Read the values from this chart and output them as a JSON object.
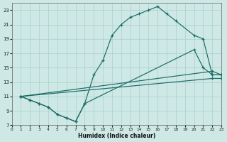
{
  "xlabel": "Humidex (Indice chaleur)",
  "bg_color": "#cde8e5",
  "line_color": "#1b6b65",
  "grid_color": "#aad0cc",
  "xlim": [
    0,
    23
  ],
  "ylim": [
    7,
    24
  ],
  "xticks": [
    0,
    1,
    2,
    3,
    4,
    5,
    6,
    7,
    8,
    9,
    10,
    11,
    12,
    13,
    14,
    15,
    16,
    17,
    18,
    19,
    20,
    21,
    22,
    23
  ],
  "yticks": [
    7,
    9,
    11,
    13,
    15,
    17,
    19,
    21,
    23
  ],
  "series": [
    {
      "x": [
        1,
        2,
        3,
        4,
        5,
        6,
        7,
        8,
        9,
        10,
        11,
        12,
        13,
        14,
        15,
        16,
        17,
        18,
        20,
        21,
        22,
        23
      ],
      "y": [
        11,
        10.5,
        10,
        9.5,
        8.5,
        8,
        7.5,
        10,
        14,
        16,
        19.5,
        21,
        22,
        22.5,
        23,
        23.5,
        22.5,
        21.5,
        19.5,
        19,
        14,
        14
      ]
    },
    {
      "x": [
        1,
        2,
        3,
        4,
        5,
        6,
        7,
        8,
        20,
        21,
        22,
        23
      ],
      "y": [
        11,
        10.5,
        10,
        9.5,
        8.5,
        8,
        7.5,
        10,
        17.5,
        15,
        14,
        14
      ]
    },
    {
      "x": [
        1,
        22,
        23
      ],
      "y": [
        11,
        14.5,
        14
      ]
    },
    {
      "x": [
        1,
        22,
        23
      ],
      "y": [
        11,
        13.5,
        13.5
      ]
    }
  ]
}
